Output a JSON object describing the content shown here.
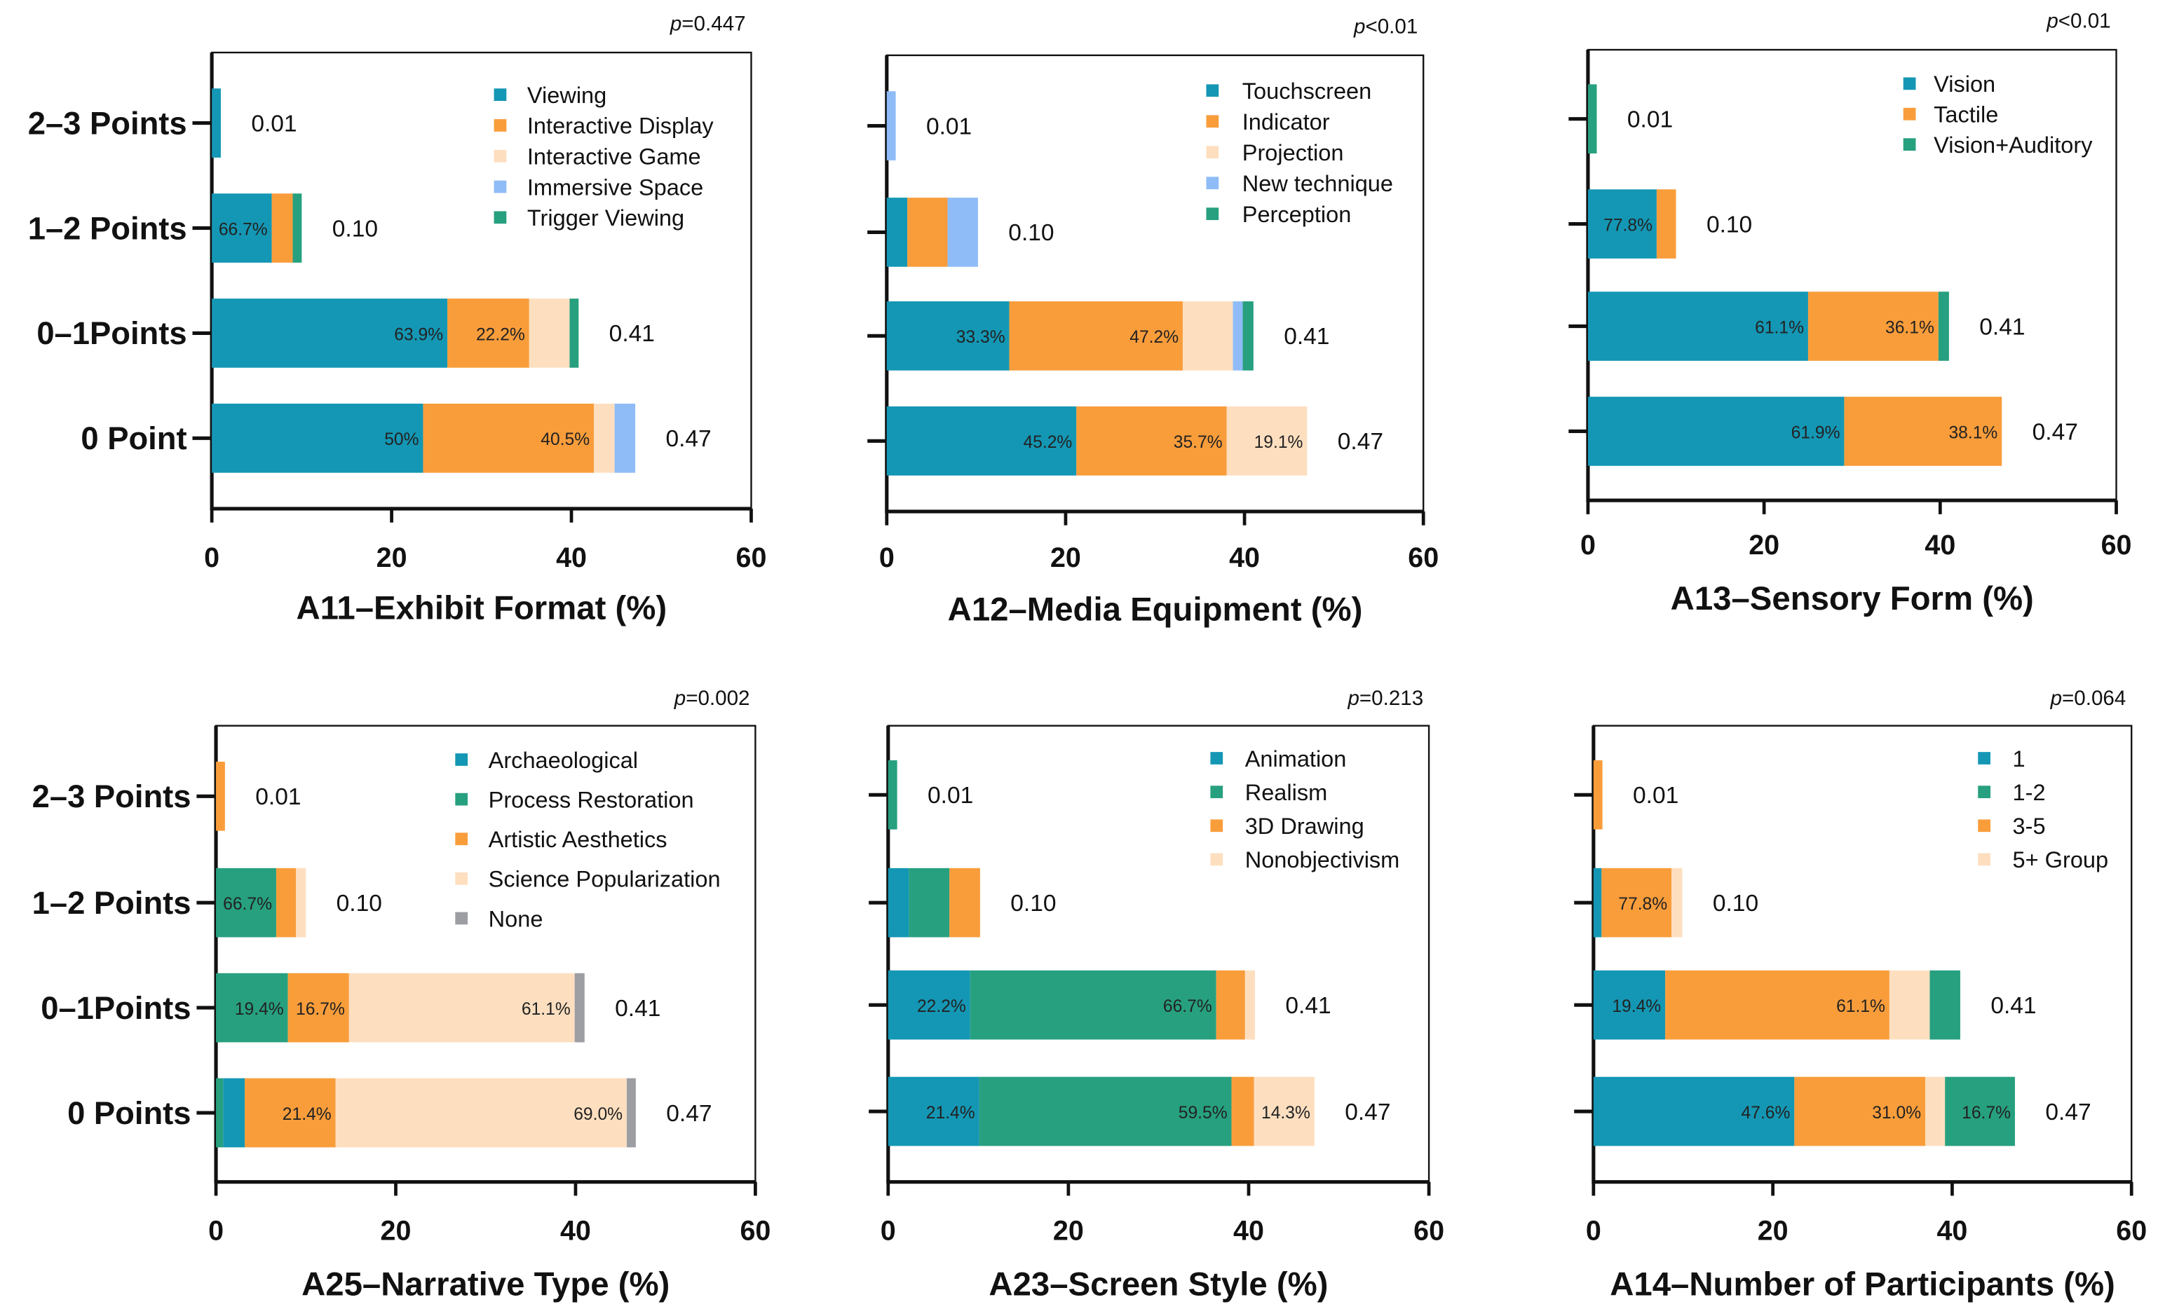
{
  "colors": {
    "teal": "#1497b4",
    "orange": "#f99d3b",
    "peach": "#fddfc0",
    "lightblue": "#8fbcf7",
    "green": "#27a07f",
    "gray": "#9c9ea3"
  },
  "chart_data": [
    {
      "type": "bar",
      "orientation": "horizontal",
      "stacked": true,
      "title": "A11–Exhibit Format (%)",
      "p_value_label": "p",
      "p_value": "=0.447",
      "xlim": [
        0,
        60
      ],
      "xticks": [
        "0",
        "20",
        "40",
        "60"
      ],
      "legend": [
        {
          "name": "Viewing",
          "color": "teal"
        },
        {
          "name": "Interactive Display",
          "color": "orange"
        },
        {
          "name": "Interactive Game",
          "color": "peach"
        },
        {
          "name": "Immersive Space",
          "color": "lightblue"
        },
        {
          "name": "Trigger Viewing",
          "color": "green"
        }
      ],
      "rows": [
        {
          "label": "2–3 Points",
          "total": "0.01",
          "segments": [
            {
              "series": "Viewing",
              "value": 1
            }
          ]
        },
        {
          "label": "1–2 Points",
          "total": "0.10",
          "segments": [
            {
              "series": "Viewing",
              "value": 6.67,
              "label": "66.7%"
            },
            {
              "series": "Interactive Display",
              "value": 2.33
            },
            {
              "series": "Trigger Viewing",
              "value": 1.0
            }
          ]
        },
        {
          "label": "0–1Points",
          "total": "0.41",
          "segments": [
            {
              "series": "Viewing",
              "value": 26.2,
              "label": "63.9%"
            },
            {
              "series": "Interactive Display",
              "value": 9.1,
              "label": "22.2%"
            },
            {
              "series": "Interactive Game",
              "value": 4.5
            },
            {
              "series": "Trigger Viewing",
              "value": 1.0
            }
          ]
        },
        {
          "label": "0 Point",
          "total": "0.47",
          "segments": [
            {
              "series": "Viewing",
              "value": 23.5,
              "label": "50%"
            },
            {
              "series": "Interactive Display",
              "value": 19.0,
              "label": "40.5%"
            },
            {
              "series": "Interactive Game",
              "value": 2.3
            },
            {
              "series": "Immersive Space",
              "value": 2.3
            }
          ]
        }
      ]
    },
    {
      "type": "bar",
      "orientation": "horizontal",
      "stacked": true,
      "title": "A12–Media Equipment (%)",
      "p_value_label": "p",
      "p_value": "<0.01",
      "xlim": [
        0,
        60
      ],
      "xticks": [
        "0",
        "20",
        "40",
        "60"
      ],
      "legend": [
        {
          "name": "Touchscreen",
          "color": "teal"
        },
        {
          "name": "Indicator",
          "color": "orange"
        },
        {
          "name": "Projection",
          "color": "peach"
        },
        {
          "name": "New technique",
          "color": "lightblue"
        },
        {
          "name": "Perception",
          "color": "green"
        }
      ],
      "rows": [
        {
          "total": "0.01",
          "segments": [
            {
              "series": "New technique",
              "value": 1
            }
          ]
        },
        {
          "total": "0.10",
          "segments": [
            {
              "series": "Touchscreen",
              "value": 2.3
            },
            {
              "series": "Indicator",
              "value": 4.5
            },
            {
              "series": "New technique",
              "value": 3.4
            }
          ]
        },
        {
          "total": "0.41",
          "segments": [
            {
              "series": "Touchscreen",
              "value": 13.7,
              "label": "33.3%"
            },
            {
              "series": "Indicator",
              "value": 19.4,
              "label": "47.2%"
            },
            {
              "series": "Projection",
              "value": 5.6
            },
            {
              "series": "New technique",
              "value": 1.1
            },
            {
              "series": "Perception",
              "value": 1.2
            }
          ]
        },
        {
          "total": "0.47",
          "segments": [
            {
              "series": "Touchscreen",
              "value": 21.2,
              "label": "45.2%"
            },
            {
              "series": "Indicator",
              "value": 16.8,
              "label": "35.7%"
            },
            {
              "series": "Projection",
              "value": 9.0,
              "label": "19.1%"
            }
          ]
        }
      ]
    },
    {
      "type": "bar",
      "orientation": "horizontal",
      "stacked": true,
      "title": "A13–Sensory Form (%)",
      "p_value_label": "p",
      "p_value": "<0.01",
      "xlim": [
        0,
        60
      ],
      "xticks": [
        "0",
        "20",
        "40",
        "60"
      ],
      "legend": [
        {
          "name": "Vision",
          "color": "teal"
        },
        {
          "name": "Tactile",
          "color": "orange"
        },
        {
          "name": "Vision+Auditory",
          "color": "green"
        }
      ],
      "rows": [
        {
          "total": "0.01",
          "segments": [
            {
              "series": "Vision+Auditory",
              "value": 1
            }
          ]
        },
        {
          "total": "0.10",
          "segments": [
            {
              "series": "Vision",
              "value": 7.8,
              "label": "77.8%"
            },
            {
              "series": "Tactile",
              "value": 2.2
            }
          ]
        },
        {
          "total": "0.41",
          "segments": [
            {
              "series": "Vision",
              "value": 25.0,
              "label": "61.1%"
            },
            {
              "series": "Tactile",
              "value": 14.8,
              "label": "36.1%"
            },
            {
              "series": "Vision+Auditory",
              "value": 1.2
            }
          ]
        },
        {
          "total": "0.47",
          "segments": [
            {
              "series": "Vision",
              "value": 29.1,
              "label": "61.9%"
            },
            {
              "series": "Tactile",
              "value": 17.9,
              "label": "38.1%"
            }
          ]
        }
      ]
    },
    {
      "type": "bar",
      "orientation": "horizontal",
      "stacked": true,
      "title": "A25–Narrative Type (%)",
      "p_value_label": "p",
      "p_value": "=0.002",
      "xlim": [
        0,
        60
      ],
      "xticks": [
        "0",
        "20",
        "40",
        "60"
      ],
      "legend": [
        {
          "name": "Archaeological",
          "color": "teal"
        },
        {
          "name": "Process Restoration",
          "color": "green"
        },
        {
          "name": "Artistic Aesthetics",
          "color": "orange"
        },
        {
          "name": "Science Popularization",
          "color": "peach"
        },
        {
          "name": "None",
          "color": "gray"
        }
      ],
      "rows": [
        {
          "label": "2–3 Points",
          "total": "0.01",
          "segments": [
            {
              "series": "Artistic Aesthetics",
              "value": 1
            }
          ]
        },
        {
          "label": "1–2 Points",
          "total": "0.10",
          "segments": [
            {
              "series": "Process Restoration",
              "value": 6.7,
              "label": "66.7%"
            },
            {
              "series": "Artistic Aesthetics",
              "value": 2.2
            },
            {
              "series": "Science Popularization",
              "value": 1.1
            }
          ]
        },
        {
          "label": "0–1Points",
          "total": "0.41",
          "segments": [
            {
              "series": "Process Restoration",
              "value": 8.0,
              "label": "19.4%"
            },
            {
              "series": "Artistic Aesthetics",
              "value": 6.8,
              "label": "16.7%"
            },
            {
              "series": "Science Popularization",
              "value": 25.1,
              "label": "61.1%"
            },
            {
              "series": "None",
              "value": 1.1
            }
          ]
        },
        {
          "label": "0 Points",
          "total": "0.47",
          "segments": [
            {
              "series": "Process Restoration",
              "value": 0.8
            },
            {
              "series": "Archaeological",
              "value": 2.4
            },
            {
              "series": "Artistic Aesthetics",
              "value": 10.1,
              "label": "21.4%"
            },
            {
              "series": "Science Popularization",
              "value": 32.4,
              "label": "69.0%"
            },
            {
              "series": "None",
              "value": 1.0
            }
          ]
        }
      ]
    },
    {
      "type": "bar",
      "orientation": "horizontal",
      "stacked": true,
      "title": "A23–Screen Style (%)",
      "p_value_label": "p",
      "p_value": "=0.213",
      "xlim": [
        0,
        60
      ],
      "xticks": [
        "0",
        "20",
        "40",
        "60"
      ],
      "legend": [
        {
          "name": "Animation",
          "color": "teal"
        },
        {
          "name": "Realism",
          "color": "green"
        },
        {
          "name": "3D Drawing",
          "color": "orange"
        },
        {
          "name": "Nonobjectivism",
          "color": "peach"
        }
      ],
      "rows": [
        {
          "total": "0.01",
          "segments": [
            {
              "series": "Realism",
              "value": 1
            }
          ]
        },
        {
          "total": "0.10",
          "segments": [
            {
              "series": "Animation",
              "value": 2.3
            },
            {
              "series": "Realism",
              "value": 4.5
            },
            {
              "series": "3D Drawing",
              "value": 3.4
            }
          ]
        },
        {
          "total": "0.41",
          "segments": [
            {
              "series": "Animation",
              "value": 9.1,
              "label": "22.2%"
            },
            {
              "series": "Realism",
              "value": 27.3,
              "label": "66.7%"
            },
            {
              "series": "3D Drawing",
              "value": 3.2
            },
            {
              "series": "Nonobjectivism",
              "value": 1.1
            }
          ]
        },
        {
          "total": "0.47",
          "segments": [
            {
              "series": "Animation",
              "value": 10.1,
              "label": "21.4%"
            },
            {
              "series": "Realism",
              "value": 28.0,
              "label": "59.5%"
            },
            {
              "series": "3D Drawing",
              "value": 2.5
            },
            {
              "series": "Nonobjectivism",
              "value": 6.7,
              "label": "14.3%"
            }
          ]
        }
      ]
    },
    {
      "type": "bar",
      "orientation": "horizontal",
      "stacked": true,
      "title": "A14–Number of Participants (%)",
      "p_value_label": "p",
      "p_value": "=0.064",
      "xlim": [
        0,
        60
      ],
      "xticks": [
        "0",
        "20",
        "40",
        "60"
      ],
      "legend": [
        {
          "name": "1",
          "color": "teal"
        },
        {
          "name": "1-2",
          "color": "green"
        },
        {
          "name": "3-5",
          "color": "orange"
        },
        {
          "name": "5+ Group",
          "color": "peach"
        }
      ],
      "rows": [
        {
          "total": "0.01",
          "segments": [
            {
              "series": "3-5",
              "value": 1
            }
          ]
        },
        {
          "total": "0.10",
          "segments": [
            {
              "series": "1",
              "value": 0.9
            },
            {
              "series": "3-5",
              "value": 7.8,
              "label": "77.8%"
            },
            {
              "series": "5+ Group",
              "value": 1.2
            }
          ]
        },
        {
          "total": "0.41",
          "segments": [
            {
              "series": "1",
              "value": 8.0,
              "label": "19.4%"
            },
            {
              "series": "3-5",
              "value": 25.0,
              "label": "61.1%"
            },
            {
              "series": "5+ Group",
              "value": 4.5
            },
            {
              "series": "1-2",
              "value": 3.4
            }
          ]
        },
        {
          "total": "0.47",
          "segments": [
            {
              "series": "1",
              "value": 22.4,
              "label": "47.6%"
            },
            {
              "series": "3-5",
              "value": 14.6,
              "label": "31.0%"
            },
            {
              "series": "5+ Group",
              "value": 2.2
            },
            {
              "series": "1-2",
              "value": 7.8,
              "label": "16.7%"
            }
          ]
        }
      ]
    }
  ]
}
